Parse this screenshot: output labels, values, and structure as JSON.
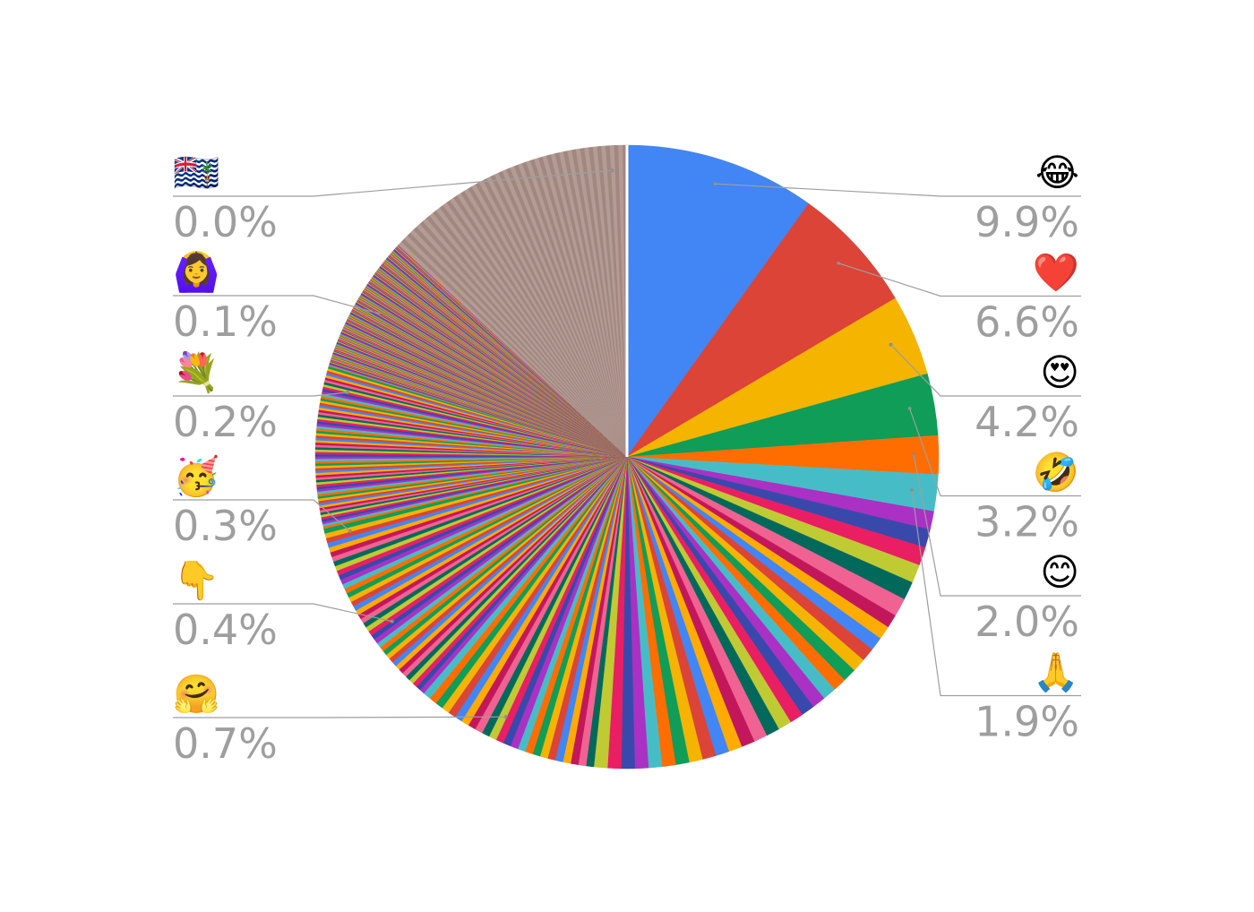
{
  "chart_data": {
    "type": "pie",
    "title": "",
    "start_angle_deg": 0,
    "direction": "clockwise",
    "labeled_slices": [
      {
        "label": "😂",
        "value": 9.9,
        "display": "9.9%",
        "color": "#4285F4",
        "side": "right"
      },
      {
        "label": "❤️",
        "value": 6.6,
        "display": "6.6%",
        "color": "#DB4437",
        "side": "right"
      },
      {
        "label": "😍",
        "value": 4.2,
        "display": "4.2%",
        "color": "#F4B400",
        "side": "right"
      },
      {
        "label": "🤣",
        "value": 3.2,
        "display": "3.2%",
        "color": "#0F9D58",
        "side": "right"
      },
      {
        "label": "😊",
        "value": 2.0,
        "display": "2.0%",
        "color": "#FF6D00",
        "side": "right"
      },
      {
        "label": "🙏",
        "value": 1.9,
        "display": "1.9%",
        "color": "#46BDC6",
        "side": "right"
      },
      {
        "label": "🤗",
        "value": 0.7,
        "display": "0.7%",
        "color": "#AB30C4",
        "side": "left"
      },
      {
        "label": "👇",
        "value": 0.4,
        "display": "0.4%",
        "color": "#3949AB",
        "side": "left"
      },
      {
        "label": "🥳",
        "value": 0.3,
        "display": "0.3%",
        "color": "#E91E63",
        "side": "left"
      },
      {
        "label": "💐",
        "value": 0.2,
        "display": "0.2%",
        "color": "#C0CA33",
        "side": "left"
      },
      {
        "label": "🙆‍♀️",
        "value": 0.1,
        "display": "0.1%",
        "color": "#00695C",
        "side": "left"
      },
      {
        "label": "🇮🇴",
        "value": 0.0,
        "display": "0.0%",
        "color": "#A1887F",
        "side": "left"
      }
    ],
    "small_slices": {
      "palette": [
        "#4285F4",
        "#DB4437",
        "#F4B400",
        "#0F9D58",
        "#FF6D00",
        "#46BDC6",
        "#AB30C4",
        "#3949AB",
        "#E91E63",
        "#C0CA33",
        "#00695C",
        "#F06292",
        "#C2185B",
        "#FFAB00"
      ],
      "tail_color": "#A1887F",
      "bands": [
        {
          "value_each": 0.95,
          "count": 6
        },
        {
          "value_each": 0.7,
          "count": 26
        },
        {
          "value_each": 0.4,
          "count": 24
        },
        {
          "value_each": 0.25,
          "count": 40
        },
        {
          "value_each": 0.12,
          "count": 70
        },
        {
          "value_each": 0.04,
          "count": 180
        }
      ]
    },
    "legend": "none",
    "label_style": "outside callouts"
  }
}
